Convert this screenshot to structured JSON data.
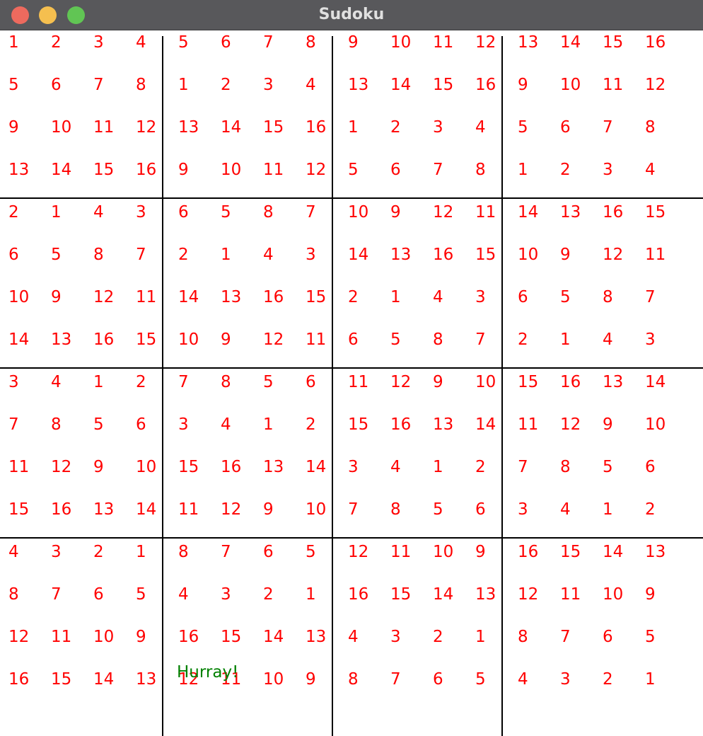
{
  "window": {
    "title": "Sudoku",
    "controls": [
      {
        "name": "close-button",
        "color": "#ed6a5e"
      },
      {
        "name": "minimize-button",
        "color": "#f5bf4f"
      },
      {
        "name": "maximize-button",
        "color": "#61c554"
      }
    ]
  },
  "colors": {
    "given_digit": "#ff0000",
    "status_text": "#008000",
    "grid_line": "#000000"
  },
  "board": {
    "size": 16,
    "box_size": 4,
    "rows": [
      [
        "1",
        "2",
        "3",
        "4",
        "5",
        "6",
        "7",
        "8",
        "9",
        "10",
        "11",
        "12",
        "13",
        "14",
        "15",
        "16"
      ],
      [
        "5",
        "6",
        "7",
        "8",
        "1",
        "2",
        "3",
        "4",
        "13",
        "14",
        "15",
        "16",
        "9",
        "10",
        "11",
        "12"
      ],
      [
        "9",
        "10",
        "11",
        "12",
        "13",
        "14",
        "15",
        "16",
        "1",
        "2",
        "3",
        "4",
        "5",
        "6",
        "7",
        "8"
      ],
      [
        "13",
        "14",
        "15",
        "16",
        "9",
        "10",
        "11",
        "12",
        "5",
        "6",
        "7",
        "8",
        "1",
        "2",
        "3",
        "4"
      ],
      [
        "2",
        "1",
        "4",
        "3",
        "6",
        "5",
        "8",
        "7",
        "10",
        "9",
        "12",
        "11",
        "14",
        "13",
        "16",
        "15"
      ],
      [
        "6",
        "5",
        "8",
        "7",
        "2",
        "1",
        "4",
        "3",
        "14",
        "13",
        "16",
        "15",
        "10",
        "9",
        "12",
        "11"
      ],
      [
        "10",
        "9",
        "12",
        "11",
        "14",
        "13",
        "16",
        "15",
        "2",
        "1",
        "4",
        "3",
        "6",
        "5",
        "8",
        "7"
      ],
      [
        "14",
        "13",
        "16",
        "15",
        "10",
        "9",
        "12",
        "11",
        "6",
        "5",
        "8",
        "7",
        "2",
        "1",
        "4",
        "3"
      ],
      [
        "3",
        "4",
        "1",
        "2",
        "7",
        "8",
        "5",
        "6",
        "11",
        "12",
        "9",
        "10",
        "15",
        "16",
        "13",
        "14"
      ],
      [
        "7",
        "8",
        "5",
        "6",
        "3",
        "4",
        "1",
        "2",
        "15",
        "16",
        "13",
        "14",
        "11",
        "12",
        "9",
        "10"
      ],
      [
        "11",
        "12",
        "9",
        "10",
        "15",
        "16",
        "13",
        "14",
        "3",
        "4",
        "1",
        "2",
        "7",
        "8",
        "5",
        "6"
      ],
      [
        "15",
        "16",
        "13",
        "14",
        "11",
        "12",
        "9",
        "10",
        "7",
        "8",
        "5",
        "6",
        "3",
        "4",
        "1",
        "2"
      ],
      [
        "4",
        "3",
        "2",
        "1",
        "8",
        "7",
        "6",
        "5",
        "12",
        "11",
        "10",
        "9",
        "16",
        "15",
        "14",
        "13"
      ],
      [
        "8",
        "7",
        "6",
        "5",
        "4",
        "3",
        "2",
        "1",
        "16",
        "15",
        "14",
        "13",
        "12",
        "11",
        "10",
        "9"
      ],
      [
        "12",
        "11",
        "10",
        "9",
        "16",
        "15",
        "14",
        "13",
        "4",
        "3",
        "2",
        "1",
        "8",
        "7",
        "6",
        "5"
      ],
      [
        "16",
        "15",
        "14",
        "13",
        "12",
        "11",
        "10",
        "9",
        "8",
        "7",
        "6",
        "5",
        "4",
        "3",
        "2",
        "1"
      ]
    ]
  },
  "status": {
    "message": "Hurray!"
  }
}
